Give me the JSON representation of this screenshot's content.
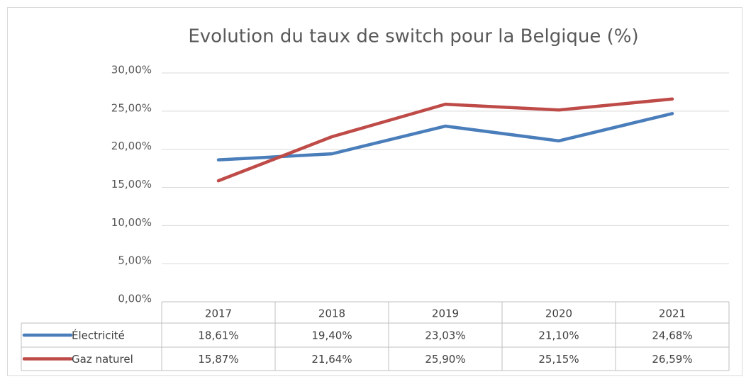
{
  "chart_data": {
    "type": "line",
    "title": "Evolution du taux de switch pour la Belgique (%)",
    "categories": [
      "2017",
      "2018",
      "2019",
      "2020",
      "2021"
    ],
    "series": [
      {
        "name": "Électricité",
        "color": "#4a7ebb",
        "values": [
          18.61,
          19.4,
          23.03,
          21.1,
          24.68
        ],
        "value_labels": [
          "18,61%",
          "19,40%",
          "23,03%",
          "21,10%",
          "24,68%"
        ]
      },
      {
        "name": "Gaz naturel",
        "color": "#be4b48",
        "values": [
          15.87,
          21.64,
          25.9,
          25.15,
          26.59
        ],
        "value_labels": [
          "15,87%",
          "21,64%",
          "25,90%",
          "25,15%",
          "26,59%"
        ]
      }
    ],
    "ylim": [
      0,
      30
    ],
    "yticks": [
      {
        "value": 0,
        "label": "0,00%"
      },
      {
        "value": 5,
        "label": "5,00%"
      },
      {
        "value": 10,
        "label": "10,00%"
      },
      {
        "value": 15,
        "label": "15,00%"
      },
      {
        "value": 20,
        "label": "20,00%"
      },
      {
        "value": 25,
        "label": "25,00%"
      },
      {
        "value": 30,
        "label": "30,00%"
      }
    ],
    "grid": true
  }
}
